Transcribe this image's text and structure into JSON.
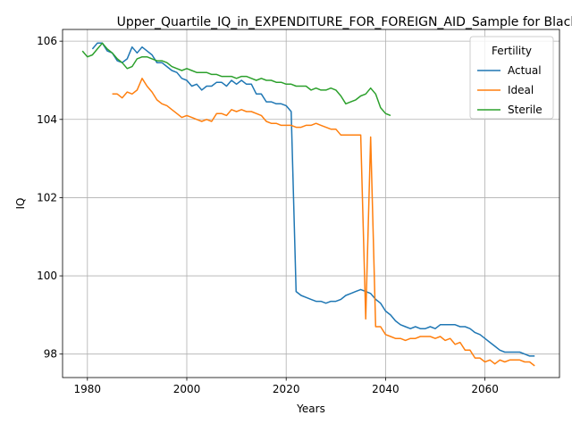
{
  "chart_data": {
    "type": "line",
    "title": "Upper_Quartile_IQ_in_EXPENDITURE_FOR_FOREIGN_AID_Sample for Black_Fe",
    "xlabel": "Years",
    "ylabel": "IQ",
    "xlim": [
      1975,
      2075
    ],
    "ylim": [
      97.4,
      106.3
    ],
    "xticks": [
      1980,
      2000,
      2020,
      2040,
      2060
    ],
    "yticks": [
      98,
      100,
      102,
      104,
      106
    ],
    "grid": true,
    "legend": {
      "title": "Fertility",
      "position": "top-right"
    },
    "series": [
      {
        "name": "Actual",
        "color": "#1f77b4",
        "points": [
          [
            1981,
            105.8
          ],
          [
            1982,
            105.95
          ],
          [
            1983,
            105.95
          ],
          [
            1984,
            105.75
          ],
          [
            1985,
            105.7
          ],
          [
            1986,
            105.5
          ],
          [
            1987,
            105.45
          ],
          [
            1988,
            105.55
          ],
          [
            1989,
            105.85
          ],
          [
            1990,
            105.7
          ],
          [
            1991,
            105.85
          ],
          [
            1992,
            105.75
          ],
          [
            1993,
            105.65
          ],
          [
            1994,
            105.45
          ],
          [
            1995,
            105.45
          ],
          [
            1996,
            105.35
          ],
          [
            1997,
            105.25
          ],
          [
            1998,
            105.2
          ],
          [
            1999,
            105.05
          ],
          [
            2000,
            105.0
          ],
          [
            2001,
            104.85
          ],
          [
            2002,
            104.9
          ],
          [
            2003,
            104.75
          ],
          [
            2004,
            104.85
          ],
          [
            2005,
            104.85
          ],
          [
            2006,
            104.95
          ],
          [
            2007,
            104.95
          ],
          [
            2008,
            104.85
          ],
          [
            2009,
            105.0
          ],
          [
            2010,
            104.9
          ],
          [
            2011,
            105.0
          ],
          [
            2012,
            104.9
          ],
          [
            2013,
            104.9
          ],
          [
            2014,
            104.65
          ],
          [
            2015,
            104.65
          ],
          [
            2016,
            104.45
          ],
          [
            2017,
            104.45
          ],
          [
            2018,
            104.4
          ],
          [
            2019,
            104.4
          ],
          [
            2020,
            104.35
          ],
          [
            2021,
            104.2
          ],
          [
            2022,
            99.6
          ],
          [
            2023,
            99.5
          ],
          [
            2024,
            99.45
          ],
          [
            2025,
            99.4
          ],
          [
            2026,
            99.35
          ],
          [
            2027,
            99.35
          ],
          [
            2028,
            99.3
          ],
          [
            2029,
            99.35
          ],
          [
            2030,
            99.35
          ],
          [
            2031,
            99.4
          ],
          [
            2032,
            99.5
          ],
          [
            2033,
            99.55
          ],
          [
            2034,
            99.6
          ],
          [
            2035,
            99.65
          ],
          [
            2036,
            99.6
          ],
          [
            2037,
            99.55
          ],
          [
            2038,
            99.4
          ],
          [
            2039,
            99.3
          ],
          [
            2040,
            99.1
          ],
          [
            2041,
            99.0
          ],
          [
            2042,
            98.85
          ],
          [
            2043,
            98.75
          ],
          [
            2044,
            98.7
          ],
          [
            2045,
            98.65
          ],
          [
            2046,
            98.7
          ],
          [
            2047,
            98.65
          ],
          [
            2048,
            98.65
          ],
          [
            2049,
            98.7
          ],
          [
            2050,
            98.65
          ],
          [
            2051,
            98.75
          ],
          [
            2052,
            98.75
          ],
          [
            2053,
            98.75
          ],
          [
            2054,
            98.75
          ],
          [
            2055,
            98.7
          ],
          [
            2056,
            98.7
          ],
          [
            2057,
            98.65
          ],
          [
            2058,
            98.55
          ],
          [
            2059,
            98.5
          ],
          [
            2060,
            98.4
          ],
          [
            2061,
            98.3
          ],
          [
            2062,
            98.2
          ],
          [
            2063,
            98.1
          ],
          [
            2064,
            98.05
          ],
          [
            2065,
            98.05
          ],
          [
            2066,
            98.05
          ],
          [
            2067,
            98.05
          ],
          [
            2068,
            98.0
          ],
          [
            2069,
            97.95
          ],
          [
            2070,
            97.95
          ]
        ]
      },
      {
        "name": "Ideal",
        "color": "#ff7f0e",
        "points": [
          [
            1985,
            104.65
          ],
          [
            1986,
            104.65
          ],
          [
            1987,
            104.55
          ],
          [
            1988,
            104.7
          ],
          [
            1989,
            104.65
          ],
          [
            1990,
            104.75
          ],
          [
            1991,
            105.05
          ],
          [
            1992,
            104.85
          ],
          [
            1993,
            104.7
          ],
          [
            1994,
            104.5
          ],
          [
            1995,
            104.4
          ],
          [
            1996,
            104.35
          ],
          [
            1997,
            104.25
          ],
          [
            1998,
            104.15
          ],
          [
            1999,
            104.05
          ],
          [
            2000,
            104.1
          ],
          [
            2001,
            104.05
          ],
          [
            2002,
            104.0
          ],
          [
            2003,
            103.95
          ],
          [
            2004,
            104.0
          ],
          [
            2005,
            103.95
          ],
          [
            2006,
            104.15
          ],
          [
            2007,
            104.15
          ],
          [
            2008,
            104.1
          ],
          [
            2009,
            104.25
          ],
          [
            2010,
            104.2
          ],
          [
            2011,
            104.25
          ],
          [
            2012,
            104.2
          ],
          [
            2013,
            104.2
          ],
          [
            2014,
            104.15
          ],
          [
            2015,
            104.1
          ],
          [
            2016,
            103.95
          ],
          [
            2017,
            103.9
          ],
          [
            2018,
            103.9
          ],
          [
            2019,
            103.85
          ],
          [
            2020,
            103.85
          ],
          [
            2021,
            103.85
          ],
          [
            2022,
            103.8
          ],
          [
            2023,
            103.8
          ],
          [
            2024,
            103.85
          ],
          [
            2025,
            103.85
          ],
          [
            2026,
            103.9
          ],
          [
            2027,
            103.85
          ],
          [
            2028,
            103.8
          ],
          [
            2029,
            103.75
          ],
          [
            2030,
            103.75
          ],
          [
            2031,
            103.6
          ],
          [
            2032,
            103.6
          ],
          [
            2033,
            103.6
          ],
          [
            2034,
            103.6
          ],
          [
            2035,
            103.6
          ],
          [
            2036,
            98.9
          ],
          [
            2037,
            103.55
          ],
          [
            2038,
            98.7
          ],
          [
            2039,
            98.7
          ],
          [
            2040,
            98.5
          ],
          [
            2041,
            98.45
          ],
          [
            2042,
            98.4
          ],
          [
            2043,
            98.4
          ],
          [
            2044,
            98.35
          ],
          [
            2045,
            98.4
          ],
          [
            2046,
            98.4
          ],
          [
            2047,
            98.45
          ],
          [
            2048,
            98.45
          ],
          [
            2049,
            98.45
          ],
          [
            2050,
            98.4
          ],
          [
            2051,
            98.45
          ],
          [
            2052,
            98.35
          ],
          [
            2053,
            98.4
          ],
          [
            2054,
            98.25
          ],
          [
            2055,
            98.3
          ],
          [
            2056,
            98.1
          ],
          [
            2057,
            98.1
          ],
          [
            2058,
            97.9
          ],
          [
            2059,
            97.9
          ],
          [
            2060,
            97.8
          ],
          [
            2061,
            97.85
          ],
          [
            2062,
            97.75
          ],
          [
            2063,
            97.85
          ],
          [
            2064,
            97.8
          ],
          [
            2065,
            97.85
          ],
          [
            2066,
            97.85
          ],
          [
            2067,
            97.85
          ],
          [
            2068,
            97.8
          ],
          [
            2069,
            97.8
          ],
          [
            2070,
            97.7
          ]
        ]
      },
      {
        "name": "Sterile",
        "color": "#2ca02c",
        "points": [
          [
            1979,
            105.75
          ],
          [
            1980,
            105.6
          ],
          [
            1981,
            105.65
          ],
          [
            1982,
            105.8
          ],
          [
            1983,
            105.95
          ],
          [
            1984,
            105.8
          ],
          [
            1985,
            105.7
          ],
          [
            1986,
            105.55
          ],
          [
            1987,
            105.45
          ],
          [
            1988,
            105.3
          ],
          [
            1989,
            105.35
          ],
          [
            1990,
            105.55
          ],
          [
            1991,
            105.6
          ],
          [
            1992,
            105.6
          ],
          [
            1993,
            105.55
          ],
          [
            1994,
            105.5
          ],
          [
            1995,
            105.5
          ],
          [
            1996,
            105.45
          ],
          [
            1997,
            105.35
          ],
          [
            1998,
            105.3
          ],
          [
            1999,
            105.25
          ],
          [
            2000,
            105.3
          ],
          [
            2001,
            105.25
          ],
          [
            2002,
            105.2
          ],
          [
            2003,
            105.2
          ],
          [
            2004,
            105.2
          ],
          [
            2005,
            105.15
          ],
          [
            2006,
            105.15
          ],
          [
            2007,
            105.1
          ],
          [
            2008,
            105.1
          ],
          [
            2009,
            105.1
          ],
          [
            2010,
            105.05
          ],
          [
            2011,
            105.1
          ],
          [
            2012,
            105.1
          ],
          [
            2013,
            105.05
          ],
          [
            2014,
            105.0
          ],
          [
            2015,
            105.05
          ],
          [
            2016,
            105.0
          ],
          [
            2017,
            105.0
          ],
          [
            2018,
            104.95
          ],
          [
            2019,
            104.95
          ],
          [
            2020,
            104.9
          ],
          [
            2021,
            104.9
          ],
          [
            2022,
            104.85
          ],
          [
            2023,
            104.85
          ],
          [
            2024,
            104.85
          ],
          [
            2025,
            104.75
          ],
          [
            2026,
            104.8
          ],
          [
            2027,
            104.75
          ],
          [
            2028,
            104.75
          ],
          [
            2029,
            104.8
          ],
          [
            2030,
            104.75
          ],
          [
            2031,
            104.6
          ],
          [
            2032,
            104.4
          ],
          [
            2033,
            104.45
          ],
          [
            2034,
            104.5
          ],
          [
            2035,
            104.6
          ],
          [
            2036,
            104.65
          ],
          [
            2037,
            104.8
          ],
          [
            2038,
            104.65
          ],
          [
            2039,
            104.3
          ],
          [
            2040,
            104.15
          ],
          [
            2041,
            104.1
          ]
        ]
      }
    ]
  }
}
